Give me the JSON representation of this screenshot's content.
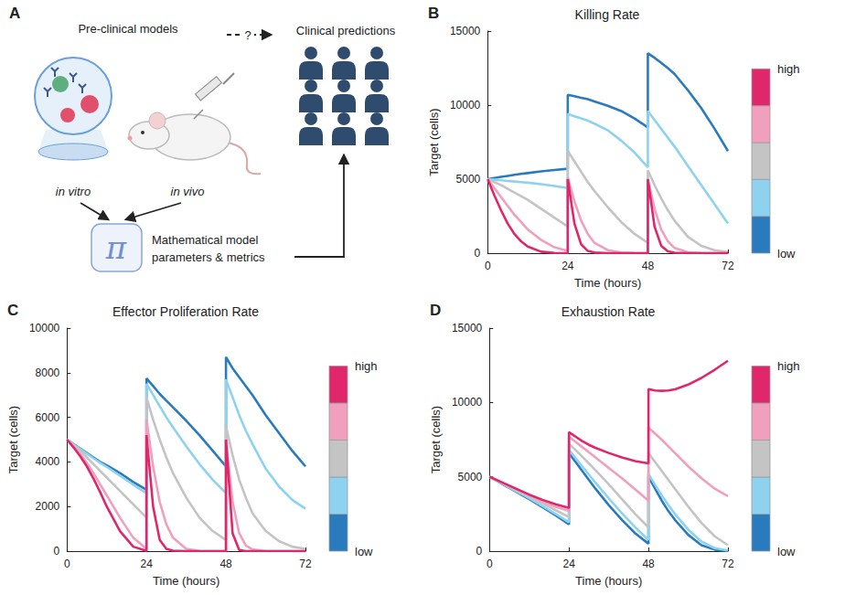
{
  "diagram": {
    "label": "A",
    "preclinical": {
      "title": "Pre-clinical models",
      "in_vitro": "in vitro",
      "in_vivo": "in vivo"
    },
    "link": "?",
    "clinical": "Clinical predictions",
    "model": {
      "symbol": "π",
      "lines": [
        "Mathematical model",
        "parameters & metrics"
      ]
    }
  },
  "chart_data": [
    {
      "type": "line",
      "label": "B",
      "title": "Killing Rate",
      "x_label": "Time (hours)",
      "y_label": "Target (cells)",
      "xlim": [
        0,
        72
      ],
      "xticks": [
        0,
        24,
        48,
        72
      ],
      "ylim": [
        0,
        15000
      ],
      "yticks": [
        0,
        5000,
        10000,
        15000
      ],
      "grid": false,
      "x": [
        0,
        2,
        4,
        6,
        8,
        10,
        12,
        16,
        20,
        24,
        24,
        26,
        28,
        30,
        32,
        36,
        40,
        44,
        48,
        48,
        50,
        52,
        54,
        56,
        60,
        64,
        68,
        72
      ],
      "series": [
        {
          "color": "#2a7bbd",
          "values": [
            5000,
            5080,
            5150,
            5220,
            5290,
            5350,
            5410,
            5520,
            5620,
            5700,
            10700,
            10600,
            10500,
            10400,
            10250,
            9950,
            9600,
            9100,
            8500,
            13500,
            13200,
            12850,
            12500,
            12100,
            11000,
            9800,
            8400,
            6900
          ]
        },
        {
          "color": "#8dd3f0",
          "values": [
            5000,
            4960,
            4920,
            4880,
            4840,
            4800,
            4760,
            4660,
            4540,
            4400,
            9400,
            9250,
            9100,
            8950,
            8750,
            8300,
            7600,
            6800,
            5800,
            9600,
            9000,
            8400,
            7800,
            7200,
            5900,
            4600,
            3300,
            2000
          ]
        },
        {
          "color": "#c4c4c4",
          "values": [
            5000,
            4800,
            4600,
            4350,
            4100,
            3850,
            3600,
            3000,
            2400,
            1800,
            6900,
            6200,
            5500,
            4800,
            4200,
            3100,
            2100,
            1300,
            700,
            5600,
            4600,
            3700,
            2900,
            2200,
            1100,
            500,
            200,
            80
          ]
        },
        {
          "color": "#f0a0bd",
          "values": [
            5000,
            4400,
            3800,
            3200,
            2600,
            2100,
            1600,
            900,
            400,
            150,
            5100,
            3500,
            2200,
            1300,
            700,
            200,
            50,
            10,
            0,
            5000,
            3000,
            1600,
            800,
            350,
            60,
            10,
            0,
            0
          ]
        },
        {
          "color": "#e0276b",
          "values": [
            5000,
            3900,
            2900,
            2000,
            1300,
            800,
            450,
            100,
            20,
            0,
            5000,
            2000,
            600,
            150,
            40,
            0,
            0,
            0,
            0,
            5000,
            1800,
            500,
            120,
            30,
            0,
            0,
            0,
            0
          ]
        }
      ],
      "colorbar": {
        "labels": [
          "low",
          "high"
        ]
      }
    },
    {
      "type": "line",
      "label": "C",
      "title": "Effector Proliferation Rate",
      "x_label": "Time (hours)",
      "y_label": "Target (cells)",
      "xlim": [
        0,
        72
      ],
      "xticks": [
        0,
        24,
        48,
        72
      ],
      "ylim": [
        0,
        10000
      ],
      "yticks": [
        0,
        2000,
        4000,
        6000,
        8000,
        10000
      ],
      "grid": false,
      "x": [
        0,
        2,
        4,
        6,
        8,
        10,
        12,
        16,
        20,
        24,
        24,
        26,
        28,
        30,
        32,
        36,
        40,
        44,
        48,
        48,
        50,
        52,
        54,
        56,
        60,
        64,
        68,
        72
      ],
      "series": [
        {
          "color": "#2a7bbd",
          "values": [
            5000,
            4800,
            4600,
            4400,
            4200,
            4000,
            3850,
            3500,
            3100,
            2750,
            7750,
            7400,
            7050,
            6750,
            6450,
            5850,
            5200,
            4500,
            3800,
            8700,
            8200,
            7800,
            7400,
            7000,
            6100,
            5300,
            4500,
            3800
          ]
        },
        {
          "color": "#8dd3f0",
          "values": [
            5000,
            4790,
            4580,
            4370,
            4160,
            3960,
            3780,
            3380,
            2980,
            2600,
            7500,
            7000,
            6500,
            6000,
            5550,
            4700,
            3900,
            3200,
            2600,
            7700,
            6900,
            6100,
            5400,
            4800,
            3700,
            2900,
            2300,
            1900
          ]
        },
        {
          "color": "#c4c4c4",
          "values": [
            5000,
            4750,
            4500,
            4200,
            3900,
            3600,
            3300,
            2700,
            2100,
            1500,
            6900,
            5900,
            5000,
            4200,
            3500,
            2400,
            1500,
            900,
            500,
            5600,
            4300,
            3200,
            2400,
            1700,
            900,
            450,
            200,
            100
          ]
        },
        {
          "color": "#f0a0bd",
          "values": [
            5000,
            4700,
            4350,
            3950,
            3500,
            3000,
            2500,
            1500,
            600,
            100,
            5900,
            3800,
            2200,
            1200,
            600,
            100,
            10,
            0,
            0,
            5000,
            2200,
            800,
            250,
            80,
            0,
            0,
            0,
            0
          ]
        },
        {
          "color": "#e0276b",
          "values": [
            5000,
            4650,
            4250,
            3800,
            3250,
            2650,
            2000,
            900,
            200,
            10,
            5200,
            2000,
            500,
            100,
            20,
            0,
            0,
            0,
            0,
            5000,
            800,
            50,
            0,
            0,
            0,
            0,
            0,
            0
          ]
        }
      ],
      "colorbar": {
        "labels": [
          "low",
          "high"
        ]
      }
    },
    {
      "type": "line",
      "label": "D",
      "title": "Exhaustion Rate",
      "x_label": "Time (hours)",
      "y_label": "Target (cells)",
      "xlim": [
        0,
        72
      ],
      "xticks": [
        0,
        24,
        48,
        72
      ],
      "ylim": [
        0,
        15000
      ],
      "yticks": [
        0,
        5000,
        10000,
        15000
      ],
      "grid": false,
      "x": [
        0,
        2,
        4,
        6,
        8,
        10,
        12,
        16,
        20,
        24,
        24,
        26,
        28,
        30,
        32,
        36,
        40,
        44,
        48,
        48,
        50,
        52,
        54,
        56,
        60,
        64,
        68,
        72
      ],
      "series": [
        {
          "color": "#2a7bbd",
          "values": [
            5000,
            4750,
            4500,
            4250,
            4000,
            3750,
            3500,
            2950,
            2400,
            1800,
            6600,
            6000,
            5400,
            4800,
            4200,
            3100,
            2100,
            1200,
            500,
            5000,
            4200,
            3400,
            2700,
            2100,
            1100,
            400,
            100,
            0
          ]
        },
        {
          "color": "#8dd3f0",
          "values": [
            5000,
            4760,
            4520,
            4280,
            4040,
            3800,
            3560,
            3040,
            2500,
            1950,
            6800,
            6250,
            5700,
            5150,
            4600,
            3550,
            2550,
            1600,
            750,
            5200,
            4450,
            3750,
            3100,
            2500,
            1450,
            650,
            200,
            50
          ]
        },
        {
          "color": "#c4c4c4",
          "values": [
            5000,
            4780,
            4560,
            4340,
            4120,
            3900,
            3680,
            3220,
            2750,
            2300,
            7200,
            6800,
            6350,
            5900,
            5450,
            4500,
            3500,
            2500,
            1600,
            6600,
            6000,
            5400,
            4800,
            4200,
            3000,
            1900,
            1000,
            400
          ]
        },
        {
          "color": "#f0a0bd",
          "values": [
            5000,
            4790,
            4580,
            4370,
            4160,
            3960,
            3760,
            3350,
            2980,
            2700,
            7700,
            7350,
            7000,
            6650,
            6300,
            5600,
            4900,
            4150,
            3400,
            8300,
            7900,
            7500,
            7050,
            6600,
            5700,
            4900,
            4200,
            3700
          ]
        },
        {
          "color": "#e0276b",
          "values": [
            5000,
            4800,
            4600,
            4400,
            4200,
            4000,
            3800,
            3450,
            3150,
            2900,
            8000,
            7700,
            7400,
            7150,
            6950,
            6600,
            6300,
            6050,
            5900,
            10900,
            10800,
            10780,
            10800,
            10880,
            11200,
            11650,
            12200,
            12800
          ]
        }
      ],
      "colorbar": {
        "labels": [
          "low",
          "high"
        ]
      }
    }
  ]
}
